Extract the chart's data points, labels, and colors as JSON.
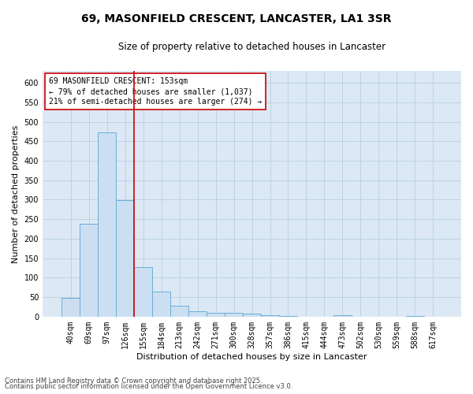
{
  "title_line1": "69, MASONFIELD CRESCENT, LANCASTER, LA1 3SR",
  "title_line2": "Size of property relative to detached houses in Lancaster",
  "xlabel": "Distribution of detached houses by size in Lancaster",
  "ylabel": "Number of detached properties",
  "categories": [
    "40sqm",
    "69sqm",
    "97sqm",
    "126sqm",
    "155sqm",
    "184sqm",
    "213sqm",
    "242sqm",
    "271sqm",
    "300sqm",
    "328sqm",
    "357sqm",
    "386sqm",
    "415sqm",
    "444sqm",
    "473sqm",
    "502sqm",
    "530sqm",
    "559sqm",
    "588sqm",
    "617sqm"
  ],
  "values": [
    48,
    238,
    472,
    298,
    128,
    64,
    27,
    14,
    9,
    9,
    7,
    4,
    1,
    0,
    0,
    3,
    0,
    0,
    0,
    1,
    0
  ],
  "bar_color": "#ccdff2",
  "bar_edge_color": "#6aaed6",
  "vline_color": "#cc0000",
  "annotation_text_line1": "69 MASONFIELD CRESCENT: 153sqm",
  "annotation_text_line2": "← 79% of detached houses are smaller (1,037)",
  "annotation_text_line3": "21% of semi-detached houses are larger (274) →",
  "annotation_box_facecolor": "#ffffff",
  "annotation_box_edgecolor": "#cc0000",
  "ylim": [
    0,
    630
  ],
  "yticks": [
    0,
    50,
    100,
    150,
    200,
    250,
    300,
    350,
    400,
    450,
    500,
    550,
    600
  ],
  "grid_color": "#b8cfe0",
  "plot_bg_color": "#dce9f5",
  "fig_bg_color": "#ffffff",
  "footer_line1": "Contains HM Land Registry data © Crown copyright and database right 2025.",
  "footer_line2": "Contains public sector information licensed under the Open Government Licence v3.0.",
  "title1_fontsize": 10,
  "title2_fontsize": 8.5,
  "axis_label_fontsize": 8,
  "tick_fontsize": 7,
  "annotation_fontsize": 7,
  "footer_fontsize": 6
}
